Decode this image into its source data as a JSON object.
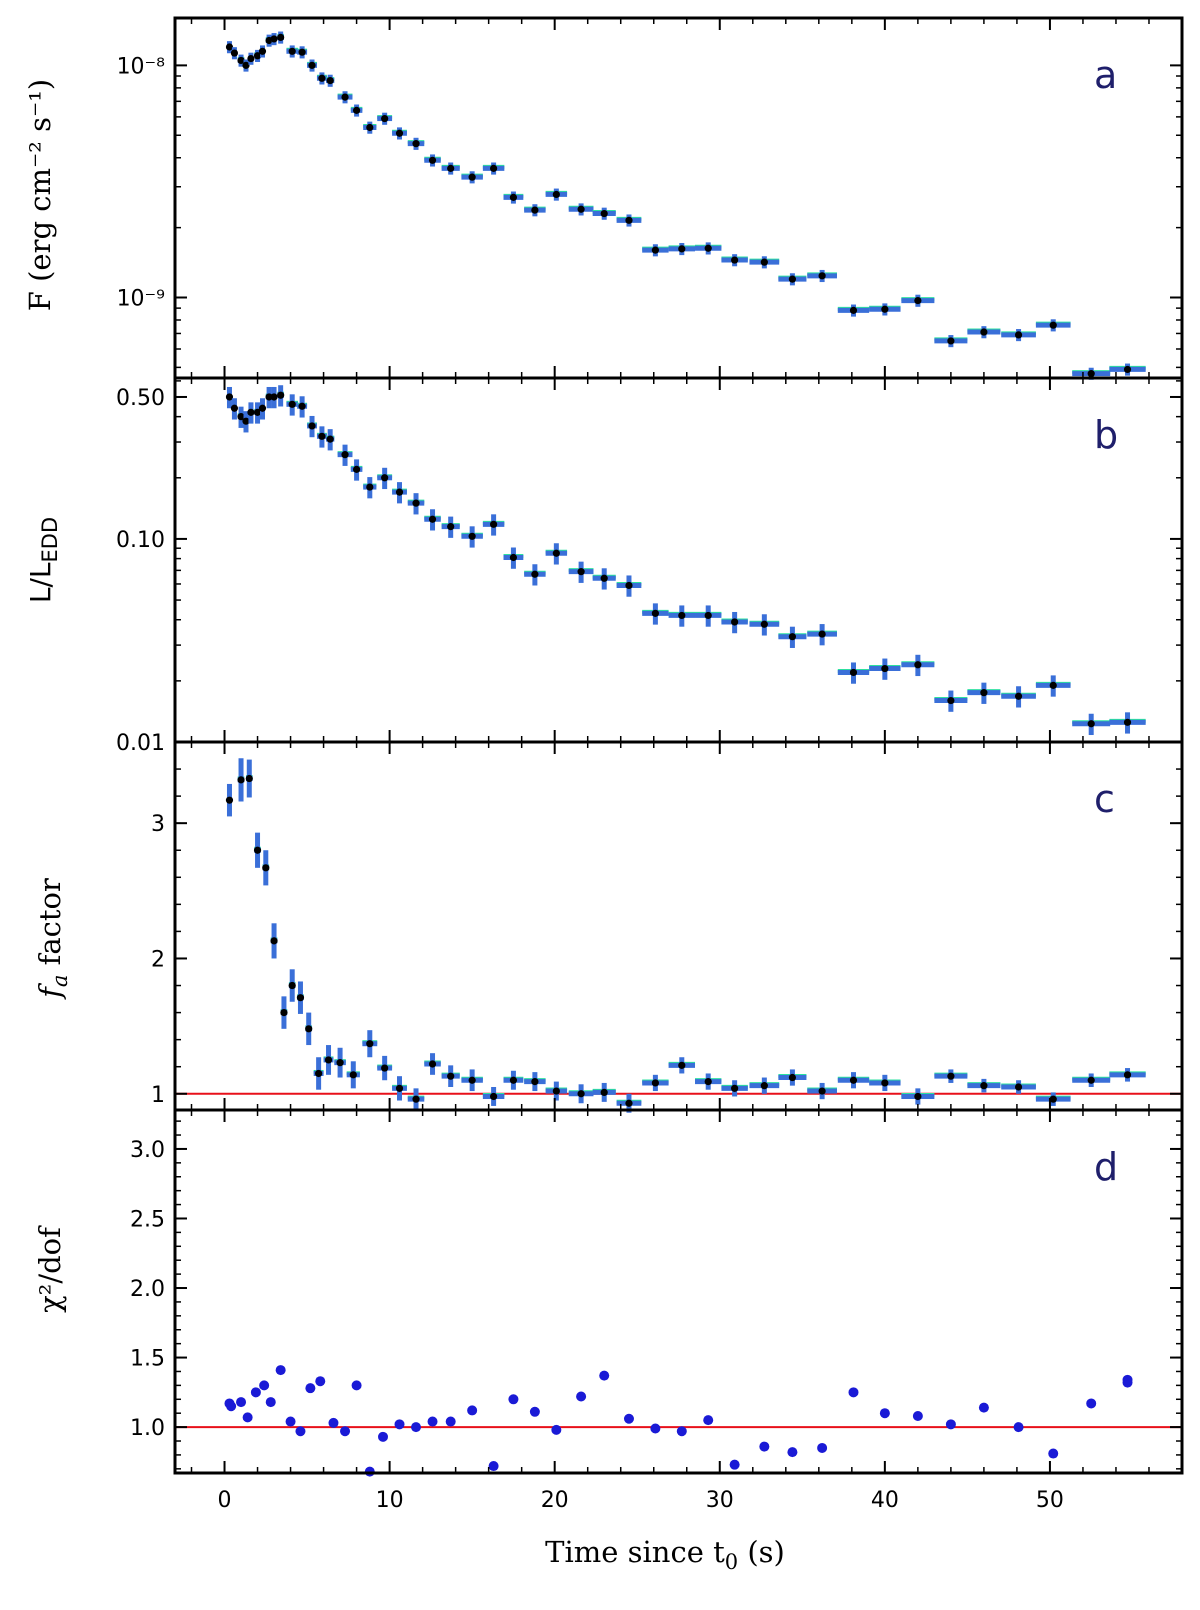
{
  "chart_data": {
    "type": "scatter",
    "xlabel": "Time since t",
    "xlabel_sub": "0",
    "xlabel_tail": " (s)",
    "xlim": [
      -3,
      58
    ],
    "xticks": [
      0,
      10,
      20,
      30,
      40,
      50
    ],
    "reference_line_color": "#e8101a",
    "colors": {
      "errbar": "#3a6fd8",
      "errbar_glow": "#2de0a0",
      "point": "#000000",
      "chi_point": "#1a1ad6",
      "panel_letter": "#1f1f6b"
    },
    "panels": [
      {
        "id": "a",
        "letter": "a",
        "ylabel": "F (erg cm⁻² s⁻¹)",
        "yscale": "log",
        "ylim": [
          4.5e-10,
          1.6e-08
        ],
        "yticks": [
          {
            "value": 1e-08,
            "label": "10⁻⁸"
          },
          {
            "value": 1e-09,
            "label": "10⁻⁹"
          }
        ],
        "x": [
          0.3,
          0.6,
          1.0,
          1.3,
          1.6,
          2.0,
          2.3,
          2.7,
          3.0,
          3.4,
          4.1,
          4.7,
          5.3,
          5.9,
          6.4,
          7.3,
          8.0,
          8.8,
          9.7,
          10.6,
          11.6,
          12.6,
          13.7,
          15.0,
          16.3,
          17.5,
          18.8,
          20.1,
          21.6,
          23.0,
          24.5,
          26.1,
          27.7,
          29.3,
          30.9,
          32.7,
          34.4,
          36.2,
          38.1,
          40.0,
          42.0,
          44.0,
          46.0,
          48.1,
          50.2,
          52.5,
          54.7
        ],
        "values": [
          1.2e-08,
          1.13e-08,
          1.05e-08,
          1e-08,
          1.07e-08,
          1.1e-08,
          1.15e-08,
          1.28e-08,
          1.3e-08,
          1.32e-08,
          1.15e-08,
          1.14e-08,
          1e-08,
          8.8e-09,
          8.6e-09,
          7.3e-09,
          6.4e-09,
          5.4e-09,
          5.9e-09,
          5.1e-09,
          4.6e-09,
          3.9e-09,
          3.6e-09,
          3.3e-09,
          3.6e-09,
          2.7e-09,
          2.38e-09,
          2.78e-09,
          2.4e-09,
          2.3e-09,
          2.15e-09,
          1.6e-09,
          1.62e-09,
          1.63e-09,
          1.45e-09,
          1.42e-09,
          1.2e-09,
          1.24e-09,
          8.8e-10,
          8.9e-10,
          9.7e-10,
          6.5e-10,
          7.1e-10,
          6.9e-10,
          7.6e-10,
          4.7e-10,
          4.9e-10
        ],
        "xerr": [
          0.15,
          0.15,
          0.2,
          0.15,
          0.15,
          0.2,
          0.15,
          0.2,
          0.15,
          0.2,
          0.35,
          0.3,
          0.3,
          0.3,
          0.25,
          0.45,
          0.35,
          0.4,
          0.45,
          0.45,
          0.5,
          0.5,
          0.55,
          0.65,
          0.65,
          0.6,
          0.65,
          0.65,
          0.75,
          0.7,
          0.75,
          0.8,
          0.8,
          0.8,
          0.8,
          0.9,
          0.85,
          0.9,
          0.95,
          0.95,
          1.0,
          1.0,
          1.0,
          1.05,
          1.05,
          1.15,
          1.1
        ],
        "yerr_frac": 0.06
      },
      {
        "id": "b",
        "letter": "b",
        "ylabel": "L/L",
        "ylabel_sub": "EDD",
        "yscale": "log",
        "ylim": [
          0.01,
          0.62
        ],
        "yticks": [
          {
            "value": 0.5,
            "label": "0.50"
          },
          {
            "value": 0.1,
            "label": "0.10"
          },
          {
            "value": 0.01,
            "label": "0.01"
          }
        ],
        "x": [
          0.3,
          0.6,
          1.0,
          1.3,
          1.6,
          2.0,
          2.3,
          2.7,
          3.0,
          3.4,
          4.1,
          4.7,
          5.3,
          5.9,
          6.4,
          7.3,
          8.0,
          8.8,
          9.7,
          10.6,
          11.6,
          12.6,
          13.7,
          15.0,
          16.3,
          17.5,
          18.8,
          20.1,
          21.6,
          23.0,
          24.5,
          26.1,
          27.7,
          29.3,
          30.9,
          32.7,
          34.4,
          36.2,
          38.1,
          40.0,
          42.0,
          44.0,
          46.0,
          48.1,
          50.2,
          52.5,
          54.7
        ],
        "values": [
          0.5,
          0.44,
          0.4,
          0.38,
          0.42,
          0.42,
          0.44,
          0.5,
          0.5,
          0.51,
          0.46,
          0.45,
          0.36,
          0.32,
          0.31,
          0.26,
          0.22,
          0.18,
          0.2,
          0.17,
          0.15,
          0.125,
          0.115,
          0.103,
          0.118,
          0.081,
          0.067,
          0.085,
          0.069,
          0.064,
          0.059,
          0.043,
          0.042,
          0.042,
          0.039,
          0.038,
          0.033,
          0.034,
          0.022,
          0.023,
          0.024,
          0.016,
          0.0175,
          0.0168,
          0.019,
          0.0123,
          0.0125
        ],
        "xerr": [
          0.15,
          0.15,
          0.2,
          0.15,
          0.15,
          0.2,
          0.15,
          0.2,
          0.15,
          0.2,
          0.35,
          0.3,
          0.3,
          0.3,
          0.25,
          0.45,
          0.35,
          0.4,
          0.45,
          0.45,
          0.5,
          0.5,
          0.55,
          0.65,
          0.65,
          0.6,
          0.65,
          0.65,
          0.75,
          0.7,
          0.75,
          0.8,
          0.8,
          0.8,
          0.8,
          0.9,
          0.85,
          0.9,
          0.95,
          0.95,
          1.0,
          1.0,
          1.0,
          1.05,
          1.05,
          1.15,
          1.1
        ],
        "yerr_frac": 0.12
      },
      {
        "id": "c",
        "letter": "c",
        "ylabel_italic": "f",
        "ylabel_sub": "a",
        "ylabel_tail": " factor",
        "yscale": "linear",
        "ylim": [
          0.88,
          3.6
        ],
        "yticks": [
          {
            "value": 1,
            "label": "1"
          },
          {
            "value": 2,
            "label": "2"
          },
          {
            "value": 3,
            "label": "3"
          }
        ],
        "reference_line": 1.0,
        "x": [
          0.3,
          1.0,
          1.5,
          2.0,
          2.5,
          3.0,
          3.6,
          4.1,
          4.6,
          5.1,
          5.7,
          6.3,
          7.0,
          7.8,
          8.8,
          9.7,
          10.6,
          11.6,
          12.6,
          13.7,
          15.0,
          16.3,
          17.5,
          18.8,
          20.1,
          21.6,
          23.0,
          24.5,
          26.1,
          27.7,
          29.3,
          30.9,
          32.7,
          34.4,
          36.2,
          38.1,
          40.0,
          42.0,
          44.0,
          46.0,
          48.1,
          50.2,
          52.5,
          54.7
        ],
        "values": [
          3.17,
          3.32,
          3.33,
          2.8,
          2.67,
          2.13,
          1.6,
          1.8,
          1.71,
          1.48,
          1.15,
          1.25,
          1.23,
          1.14,
          1.37,
          1.19,
          1.04,
          0.96,
          1.22,
          1.13,
          1.1,
          0.98,
          1.1,
          1.09,
          1.02,
          1.0,
          1.01,
          0.93,
          1.08,
          1.21,
          1.09,
          1.04,
          1.06,
          1.12,
          1.02,
          1.1,
          1.08,
          0.98,
          1.13,
          1.06,
          1.05,
          0.96,
          1.1,
          1.14
        ],
        "xerr": [
          0.15,
          0.2,
          0.2,
          0.2,
          0.2,
          0.2,
          0.2,
          0.2,
          0.2,
          0.2,
          0.3,
          0.3,
          0.35,
          0.4,
          0.45,
          0.45,
          0.45,
          0.5,
          0.5,
          0.55,
          0.65,
          0.65,
          0.6,
          0.65,
          0.65,
          0.75,
          0.7,
          0.75,
          0.8,
          0.8,
          0.8,
          0.8,
          0.9,
          0.85,
          0.9,
          0.95,
          0.95,
          1.0,
          1.0,
          1.0,
          1.05,
          1.05,
          1.15,
          1.1
        ],
        "yerr": [
          0.12,
          0.16,
          0.14,
          0.13,
          0.13,
          0.13,
          0.12,
          0.12,
          0.12,
          0.12,
          0.12,
          0.11,
          0.11,
          0.1,
          0.1,
          0.09,
          0.09,
          0.08,
          0.08,
          0.08,
          0.08,
          0.07,
          0.07,
          0.07,
          0.07,
          0.07,
          0.07,
          0.07,
          0.06,
          0.06,
          0.06,
          0.06,
          0.06,
          0.06,
          0.06,
          0.06,
          0.06,
          0.06,
          0.05,
          0.05,
          0.05,
          0.05,
          0.05,
          0.05
        ]
      },
      {
        "id": "d",
        "letter": "d",
        "ylabel": "χ²/dof",
        "yscale": "linear",
        "ylim": [
          0.67,
          3.28
        ],
        "yticks": [
          {
            "value": 1.0,
            "label": "1.0"
          },
          {
            "value": 1.5,
            "label": "1.5"
          },
          {
            "value": 2.0,
            "label": "2.0"
          },
          {
            "value": 2.5,
            "label": "2.5"
          },
          {
            "value": 3.0,
            "label": "3.0"
          }
        ],
        "reference_line": 1.0,
        "x": [
          0.3,
          0.4,
          1.0,
          1.4,
          1.9,
          2.4,
          2.8,
          3.4,
          4.0,
          4.6,
          5.2,
          5.8,
          6.6,
          7.3,
          8.0,
          8.8,
          9.6,
          10.6,
          11.6,
          12.6,
          13.7,
          15.0,
          16.3,
          17.5,
          18.8,
          20.1,
          21.6,
          23.0,
          24.5,
          26.1,
          27.7,
          29.3,
          30.9,
          32.7,
          34.4,
          36.2,
          38.1,
          40.0,
          42.0,
          44.0,
          46.0,
          48.1,
          50.2,
          52.5,
          54.7,
          54.7
        ],
        "values": [
          1.17,
          1.15,
          1.18,
          1.07,
          1.25,
          1.3,
          1.18,
          1.41,
          1.04,
          0.97,
          1.28,
          1.33,
          1.03,
          0.97,
          1.3,
          0.68,
          0.93,
          1.02,
          1.0,
          1.04,
          1.04,
          1.12,
          0.72,
          1.2,
          1.11,
          0.98,
          1.22,
          1.37,
          1.06,
          0.99,
          0.97,
          1.05,
          0.73,
          0.86,
          0.82,
          0.85,
          1.25,
          1.1,
          1.08,
          1.02,
          1.14,
          1.0,
          0.81,
          1.17,
          1.32,
          1.34
        ]
      }
    ]
  }
}
